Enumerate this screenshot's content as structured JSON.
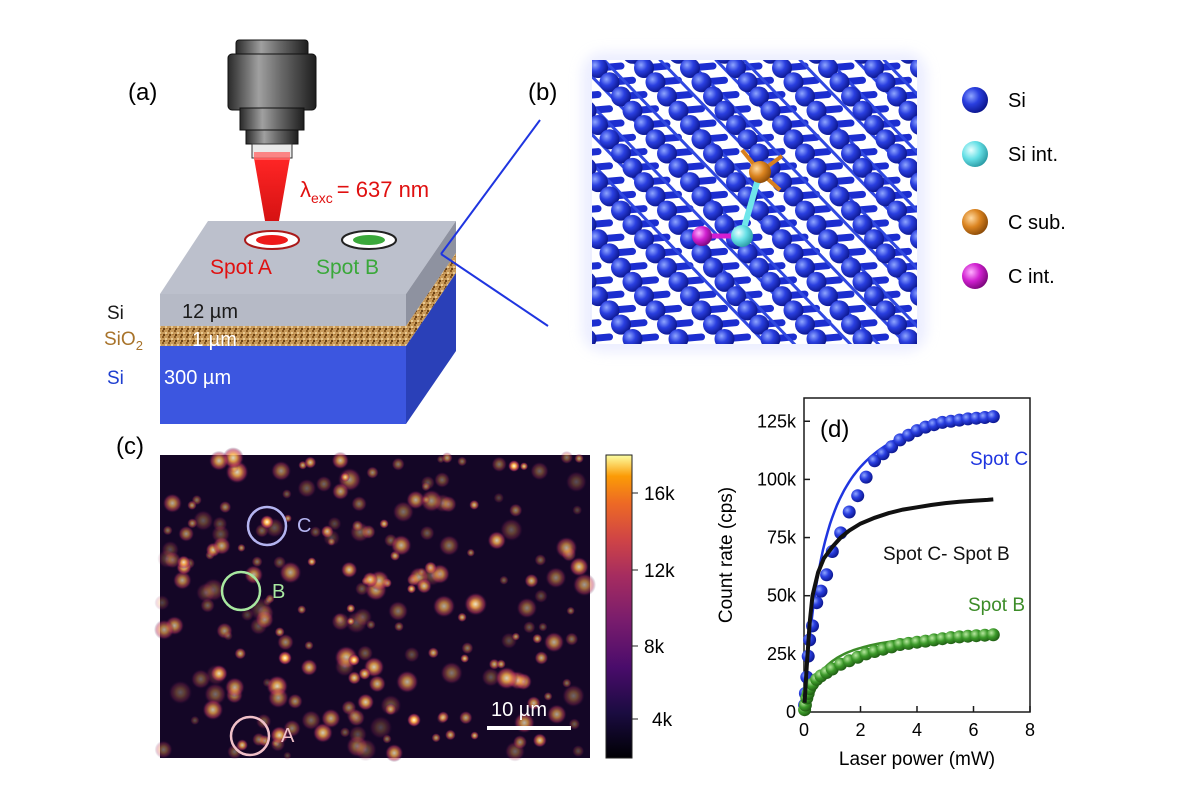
{
  "panels": {
    "a": {
      "label": "(a)",
      "lambda_symbol": "λ",
      "lambda_sub": "exc",
      "lambda_value": "= 637 nm",
      "spot_a": "Spot A",
      "spot_b": "Spot B",
      "layers": [
        {
          "material": "Si",
          "thickness": "12 µm",
          "color": "#1a1a1a"
        },
        {
          "material": "SiO",
          "material_sub": "2",
          "thickness": "1 µm",
          "color": "#a8732a"
        },
        {
          "material": "Si",
          "thickness": "300 µm",
          "color": "#1f3fd0"
        }
      ]
    },
    "b": {
      "label": "(b)",
      "legend": [
        {
          "name": "Si",
          "color": "#1a2fd8"
        },
        {
          "name": "Si int.",
          "color": "#6fe6ea"
        },
        {
          "name": "C sub.",
          "color": "#d8801e"
        },
        {
          "name": "C int.",
          "color": "#d21ed2"
        }
      ]
    },
    "c": {
      "label": "(c)",
      "spots": [
        "C",
        "B",
        "A"
      ],
      "scalebar": "10 µm",
      "colorbar_ticks": [
        "16k",
        "12k",
        "8k",
        "4k"
      ],
      "colormap": "inferno"
    },
    "d": {
      "label": "(d)"
    }
  },
  "chart_data": {
    "type": "scatter",
    "xlabel": "Laser power (mW)",
    "ylabel": "Count rate (cps)",
    "xlim": [
      0,
      8
    ],
    "ylim": [
      0,
      135000
    ],
    "xticks": [
      "0",
      "2",
      "4",
      "6",
      "8"
    ],
    "yticks": [
      "0",
      "25k",
      "50k",
      "75k",
      "100k",
      "125k"
    ],
    "series": [
      {
        "name": "Spot C",
        "color": "#1f35e0",
        "marker": "sphere",
        "x": [
          0.02,
          0.05,
          0.1,
          0.15,
          0.2,
          0.3,
          0.45,
          0.6,
          0.8,
          1.0,
          1.3,
          1.6,
          1.9,
          2.2,
          2.5,
          2.8,
          3.1,
          3.4,
          3.7,
          4.0,
          4.3,
          4.6,
          4.9,
          5.2,
          5.5,
          5.8,
          6.1,
          6.4,
          6.7
        ],
        "y": [
          3000,
          8000,
          15000,
          24000,
          31000,
          37000,
          47000,
          52000,
          59000,
          69000,
          77000,
          86000,
          93000,
          101000,
          108000,
          111000,
          114000,
          117000,
          119000,
          121000,
          122500,
          123500,
          124500,
          125000,
          125500,
          126000,
          126300,
          126600,
          127000
        ]
      },
      {
        "name": "Spot B",
        "color": "#3c8c28",
        "marker": "sphere",
        "x": [
          0.02,
          0.05,
          0.1,
          0.15,
          0.2,
          0.3,
          0.45,
          0.6,
          0.8,
          1.0,
          1.3,
          1.6,
          1.9,
          2.2,
          2.5,
          2.8,
          3.1,
          3.4,
          3.7,
          4.0,
          4.3,
          4.6,
          4.9,
          5.2,
          5.5,
          5.8,
          6.1,
          6.4,
          6.7
        ],
        "y": [
          1000,
          3000,
          6000,
          8000,
          10000,
          12000,
          14000,
          15500,
          17000,
          18500,
          20500,
          22000,
          23500,
          25000,
          26000,
          27000,
          28000,
          29000,
          29500,
          30000,
          30500,
          31000,
          31500,
          32000,
          32300,
          32600,
          32800,
          33000,
          33200
        ]
      },
      {
        "name": "Spot C- Spot B",
        "color": "#111111",
        "marker": "line",
        "x": [
          0.02,
          0.1,
          0.2,
          0.3,
          0.5,
          0.7,
          1.0,
          1.3,
          1.6,
          2.0,
          2.5,
          3.0,
          3.5,
          4.0,
          4.5,
          5.0,
          5.5,
          6.0,
          6.5,
          6.7
        ],
        "y": [
          4000,
          20000,
          38000,
          50000,
          60000,
          66000,
          71000,
          75000,
          78000,
          81000,
          83500,
          85500,
          87000,
          88000,
          89000,
          89800,
          90400,
          90800,
          91200,
          91400
        ]
      }
    ],
    "fits": [
      {
        "series": "Spot C",
        "color": "#1f35e0"
      },
      {
        "series": "Spot B",
        "color": "#3c8c28"
      }
    ]
  }
}
